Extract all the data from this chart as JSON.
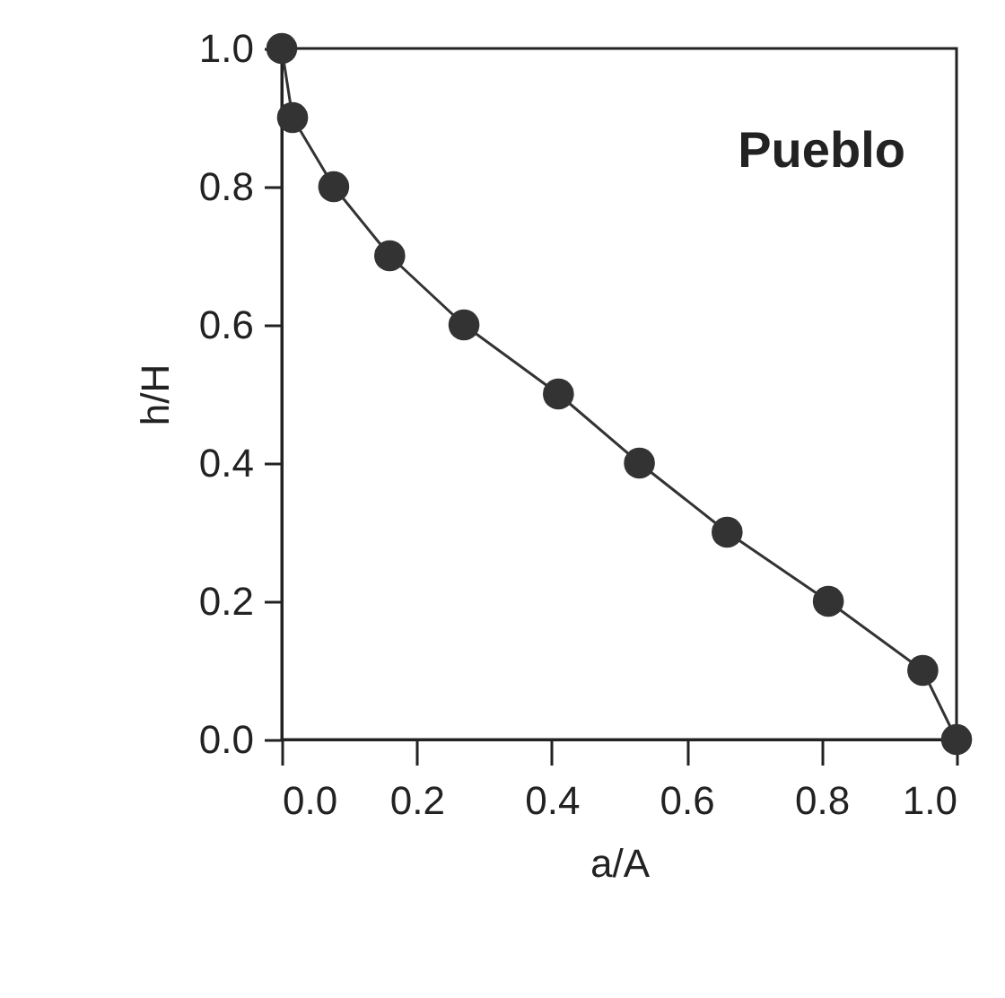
{
  "chart_data": {
    "type": "line",
    "xlabel": "a/A",
    "ylabel": "h/H",
    "annotations": [
      "Pueblo"
    ],
    "x": [
      0,
      0.016,
      0.077,
      0.16,
      0.27,
      0.41,
      0.53,
      0.66,
      0.81,
      0.95,
      1.0
    ],
    "series": [
      {
        "color": "#333333",
        "values": [
          1.0,
          0.9,
          0.8,
          0.7,
          0.6,
          0.5,
          0.4,
          0.3,
          0.2,
          0.1,
          0.0
        ]
      }
    ],
    "xlim": [
      0,
      1.0
    ],
    "ylim": [
      0,
      1.0
    ],
    "xticks": [
      {
        "value": 0,
        "label": "0.0"
      },
      {
        "value": 0.2,
        "label": "0.2"
      },
      {
        "value": 0.4,
        "label": "0.4"
      },
      {
        "value": 0.6,
        "label": "0.6"
      },
      {
        "value": 0.8,
        "label": "0.8"
      },
      {
        "value": 1,
        "label": "1.0"
      }
    ],
    "yticks": [
      {
        "value": 0,
        "label": "0.0"
      },
      {
        "value": 0.2,
        "label": "0.2"
      },
      {
        "value": 0.4,
        "label": "0.4"
      },
      {
        "value": 0.6,
        "label": "0.6"
      },
      {
        "value": 0.8,
        "label": "0.8"
      },
      {
        "value": 1,
        "label": "1.0"
      }
    ],
    "marker": "circle",
    "line_style": "solid"
  }
}
